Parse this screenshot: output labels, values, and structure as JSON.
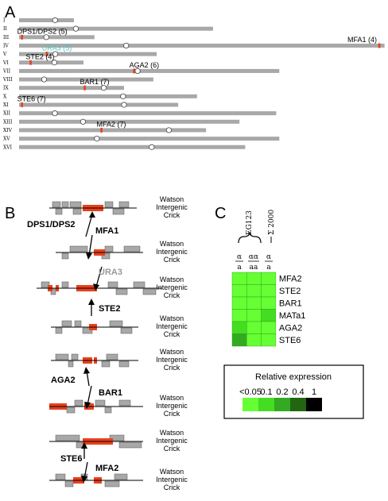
{
  "colors": {
    "chromosome": "#a8a8a8",
    "gene_mark": "#e8401c",
    "centromere_fill": "#ffffff",
    "ura3_label": "#4fc2c2",
    "ura3_gray": "#999999",
    "gene_box": "#a8a8a8",
    "scale": [
      "#66ff33",
      "#44dd22",
      "#33aa22",
      "#226611",
      "#000000"
    ]
  },
  "panelA": {
    "label": "A",
    "chromosomes": [
      {
        "roman": "I",
        "length": 230,
        "centromere": 151
      },
      {
        "roman": "II",
        "length": 813,
        "centromere": 238
      },
      {
        "roman": "III",
        "length": 316,
        "centromere": 114
      },
      {
        "roman": "IV",
        "length": 1532,
        "centromere": 449
      },
      {
        "roman": "V",
        "length": 577,
        "centromere": 152
      },
      {
        "roman": "VI",
        "length": 270,
        "centromere": 148
      },
      {
        "roman": "VII",
        "length": 1091,
        "centromere": 497
      },
      {
        "roman": "VIII",
        "length": 563,
        "centromere": 105
      },
      {
        "roman": "IX",
        "length": 440,
        "centromere": 355
      },
      {
        "roman": "X",
        "length": 746,
        "centromere": 436
      },
      {
        "roman": "XI",
        "length": 667,
        "centromere": 440
      },
      {
        "roman": "XII",
        "length": 1078,
        "centromere": 150
      },
      {
        "roman": "XIII",
        "length": 924,
        "centromere": 268
      },
      {
        "roman": "XIV",
        "length": 784,
        "centromere": 628
      },
      {
        "roman": "XV",
        "length": 1091,
        "centromere": 326
      },
      {
        "roman": "XVI",
        "length": 948,
        "centromere": 556
      }
    ],
    "genes": [
      {
        "chrom": "III",
        "pos": 12,
        "label": "DPS1/DPS2 (5)"
      },
      {
        "chrom": "IV",
        "pos": 1510,
        "label": "MFA1 (4)"
      },
      {
        "chrom": "V",
        "pos": 116,
        "label": "URA3 (5)"
      },
      {
        "chrom": "VI",
        "pos": 48,
        "label": "STE2 (4)"
      },
      {
        "chrom": "VII",
        "pos": 482,
        "label": "AGA2 (6)"
      },
      {
        "chrom": "IX",
        "pos": 275,
        "label": "BAR1 (7)"
      },
      {
        "chrom": "XI",
        "pos": 12,
        "label": "STE6 (7)"
      },
      {
        "chrom": "XIV",
        "pos": 345,
        "label": "MFA2 (7)"
      }
    ]
  },
  "panelB": {
    "label": "B",
    "strand_labels": [
      "Watson",
      "Intergenic",
      "Crick"
    ],
    "pairs": [
      {
        "left": "DPS1/DPS2",
        "right": "MFA1",
        "right_gray": false
      },
      {
        "left": "",
        "right": "URA3",
        "right_gray": true
      },
      {
        "left": "",
        "right": "STE2",
        "right_gray": false
      },
      {
        "left": "AGA2",
        "right": "BAR1",
        "right_gray": false
      },
      {
        "left": "STE6",
        "right": "MFA2",
        "right_gray": false
      }
    ]
  },
  "panelC": {
    "label": "C",
    "strain_label": "EG123",
    "sigma_label": "Σ 2000",
    "columns": [
      {
        "top": "α",
        "bottom": "a"
      },
      {
        "top": "αα",
        "bottom": "aa"
      },
      {
        "top": "α",
        "bottom": "a"
      }
    ],
    "rows": [
      {
        "gene": "MFA2",
        "levels": [
          0.05,
          0.05,
          0.05
        ]
      },
      {
        "gene": "STE2",
        "levels": [
          0.05,
          0.05,
          0.05
        ]
      },
      {
        "gene": "BAR1",
        "levels": [
          0.05,
          0.05,
          0.05
        ]
      },
      {
        "gene": "MATa1",
        "levels": [
          0.05,
          0.05,
          0.1
        ]
      },
      {
        "gene": "AGA2",
        "levels": [
          0.1,
          0.05,
          0.05
        ]
      },
      {
        "gene": "STE6",
        "levels": [
          0.2,
          0.05,
          0.05
        ]
      }
    ],
    "legend": {
      "title": "Relative expression",
      "ticks": [
        "<0.05",
        "0.1",
        "0.2",
        "0.4",
        "1"
      ]
    }
  }
}
